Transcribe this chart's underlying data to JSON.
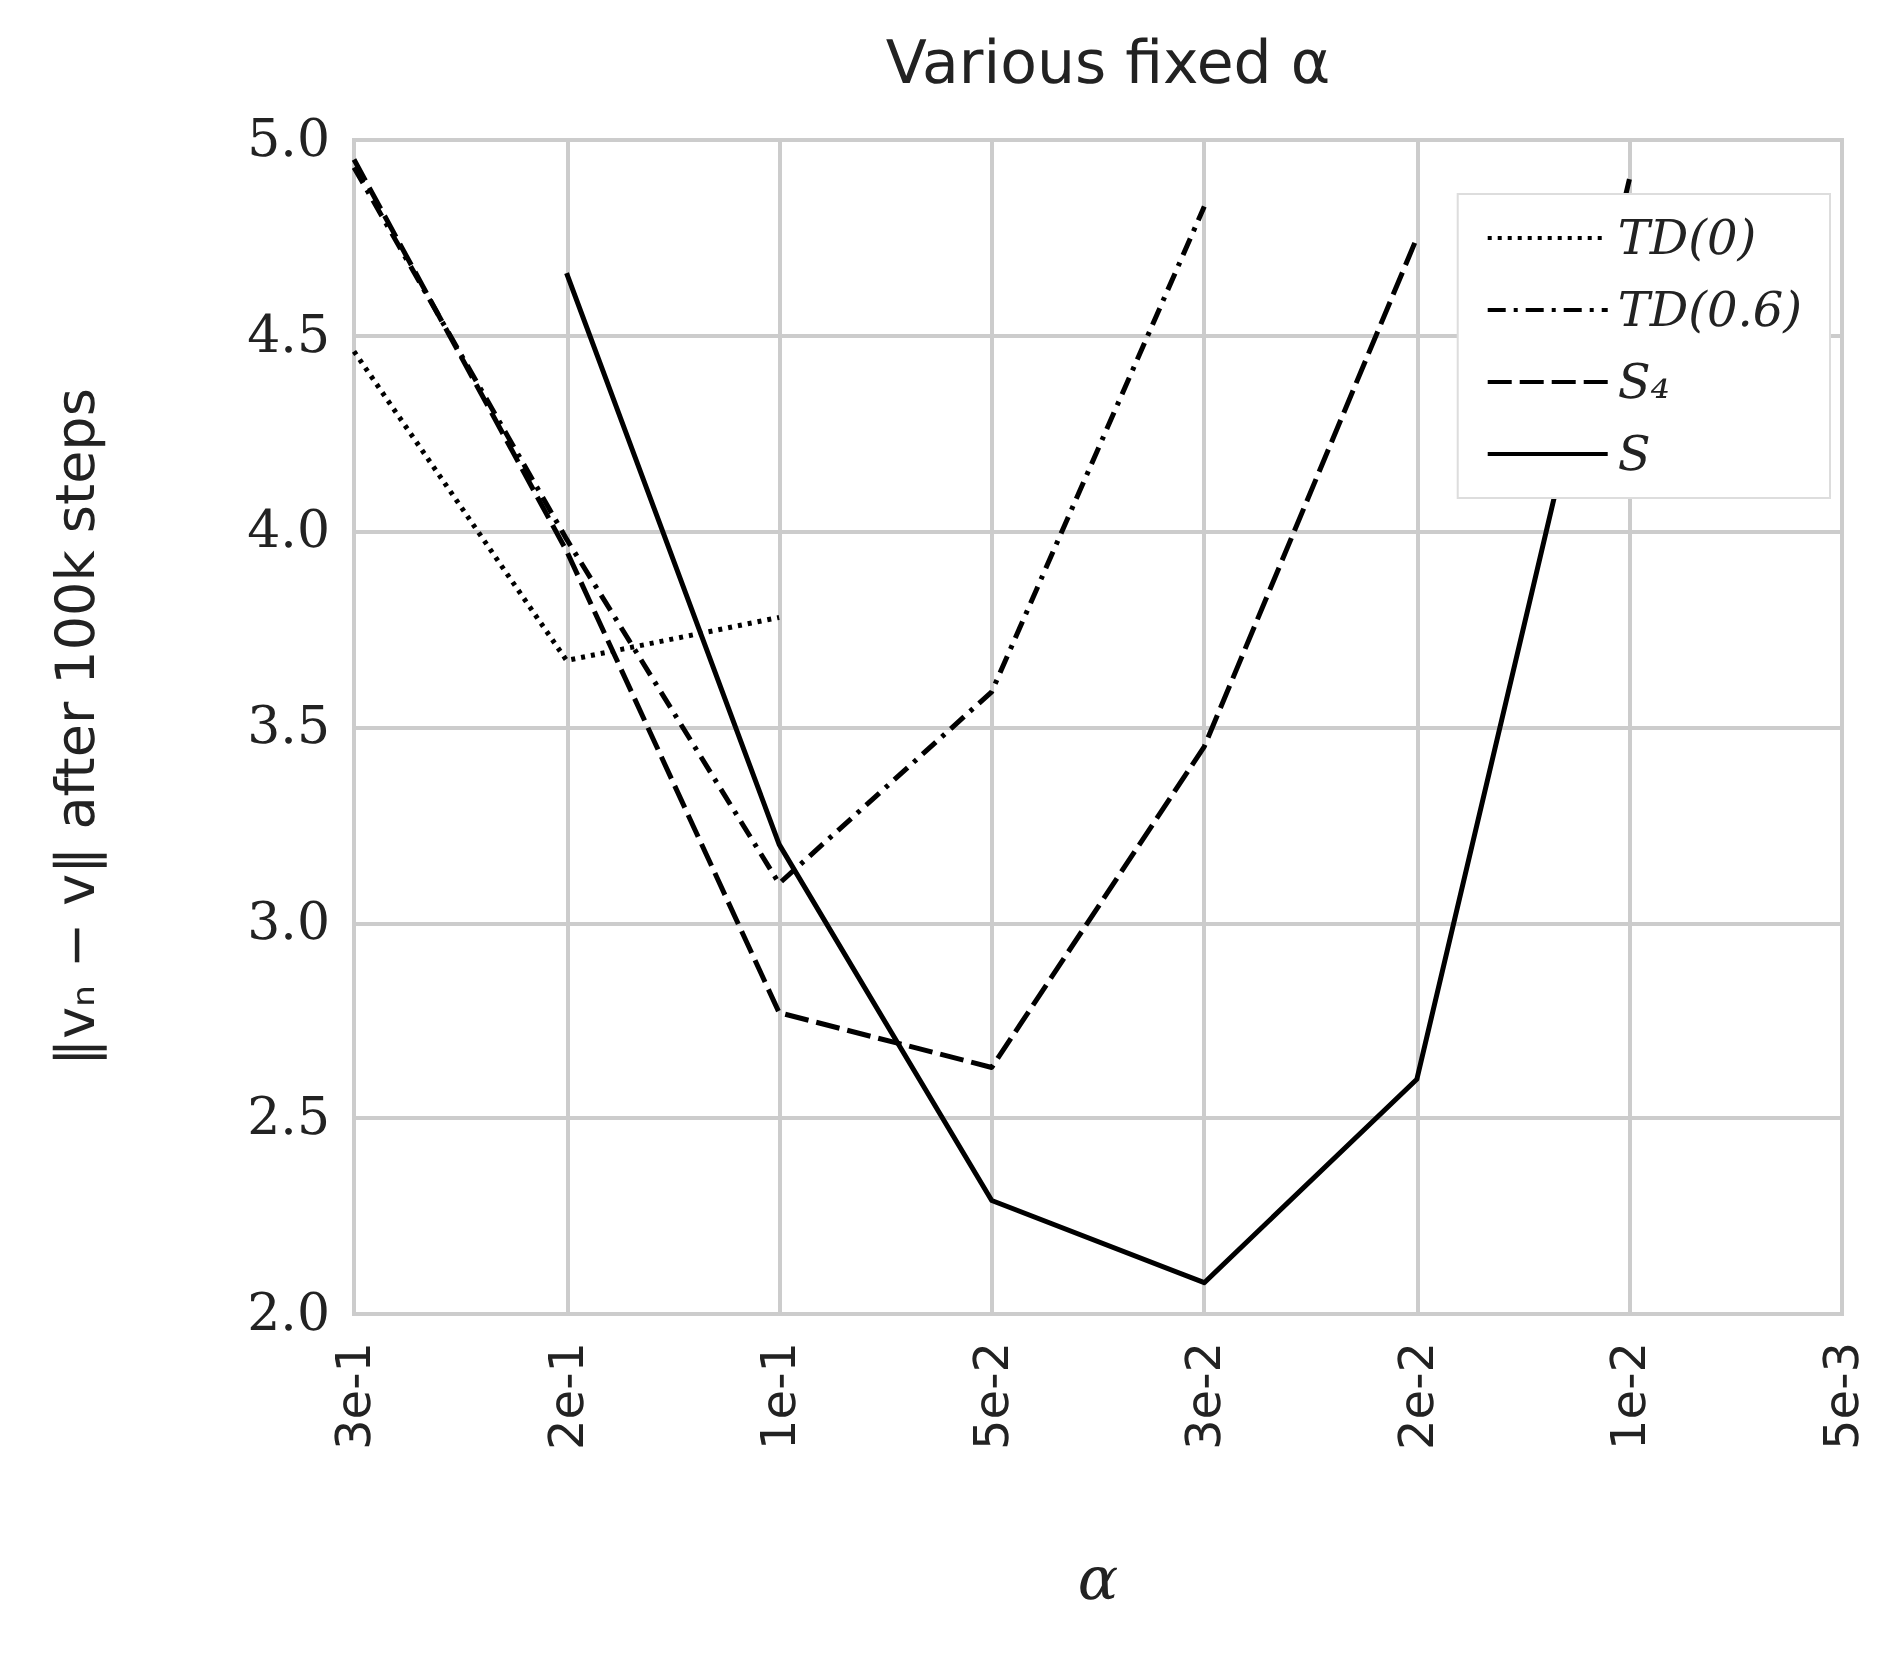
{
  "chart_data": {
    "type": "line",
    "title": "Various fixed α",
    "xlabel": "α",
    "ylabel": "‖vₙ − v‖ after 100k steps",
    "categories": [
      "3e-1",
      "2e-1",
      "1e-1",
      "5e-2",
      "3e-2",
      "2e-2",
      "1e-2",
      "5e-3"
    ],
    "series": [
      {
        "name": "TD(0)",
        "color": "#000000",
        "line_style": "dotted",
        "values": [
          4.46,
          3.67,
          3.78,
          null,
          null,
          null,
          null,
          null
        ]
      },
      {
        "name": "TD(0.6)",
        "color": "#000000",
        "line_style": "dashdot",
        "values": [
          4.93,
          3.98,
          3.1,
          3.59,
          4.83,
          null,
          null,
          null
        ]
      },
      {
        "name": "S₄",
        "color": "#000000",
        "line_style": "dashed",
        "values": [
          4.95,
          3.95,
          2.77,
          2.63,
          3.45,
          4.75,
          null,
          null
        ]
      },
      {
        "name": "S",
        "color": "#000000",
        "line_style": "solid",
        "values": [
          null,
          4.66,
          3.2,
          2.29,
          2.08,
          2.6,
          4.9,
          null
        ]
      }
    ],
    "ylim": [
      2.0,
      5.0
    ],
    "yticks": [
      {
        "value": 2,
        "label": "2.0"
      },
      {
        "value": 2.5,
        "label": "2.5"
      },
      {
        "value": 3,
        "label": "3.0"
      },
      {
        "value": 3.5,
        "label": "3.5"
      },
      {
        "value": 4,
        "label": "4.0"
      },
      {
        "value": 4.5,
        "label": "4.5"
      },
      {
        "value": 5,
        "label": "5.0"
      }
    ],
    "grid": true,
    "legend": "top right",
    "marker": "none"
  }
}
